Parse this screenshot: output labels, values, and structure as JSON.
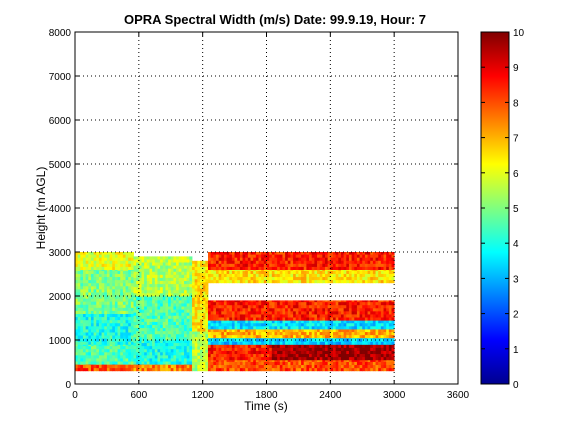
{
  "chart_data": {
    "type": "heatmap",
    "title": "OPRA Spectral Width (m/s)  Date: 99.9.19, Hour: 7",
    "xlabel": "Time (s)",
    "ylabel": "Height (m AGL)",
    "xlim": [
      0,
      3600
    ],
    "ylim": [
      0,
      8000
    ],
    "x_ticks": [
      0,
      600,
      1200,
      1800,
      2400,
      3000,
      3600
    ],
    "y_ticks": [
      0,
      1000,
      2000,
      3000,
      4000,
      5000,
      6000,
      7000,
      8000
    ],
    "grid": true,
    "grid_style": "dotted",
    "colorbar": {
      "colormap": "jet",
      "range": [
        0,
        10
      ],
      "ticks": [
        0,
        1,
        2,
        3,
        4,
        5,
        6,
        7,
        8,
        9,
        10
      ]
    },
    "data_region": {
      "time_range": [
        0,
        3000
      ],
      "height_range": [
        300,
        3000
      ]
    },
    "blocks": [
      {
        "t": [
          0,
          550
        ],
        "h": [
          300,
          450
        ],
        "value": 8.0
      },
      {
        "t": [
          0,
          550
        ],
        "h": [
          450,
          900
        ],
        "value": 4.5
      },
      {
        "t": [
          0,
          550
        ],
        "h": [
          900,
          1600
        ],
        "value": 4.0
      },
      {
        "t": [
          0,
          550
        ],
        "h": [
          1600,
          2600
        ],
        "value": 5.0
      },
      {
        "t": [
          0,
          550
        ],
        "h": [
          2600,
          3000
        ],
        "value": 6.0
      },
      {
        "t": [
          550,
          1100
        ],
        "h": [
          300,
          450
        ],
        "value": 7.5
      },
      {
        "t": [
          550,
          1100
        ],
        "h": [
          450,
          1000
        ],
        "value": 4.0
      },
      {
        "t": [
          550,
          1100
        ],
        "h": [
          1000,
          2000
        ],
        "value": 4.5
      },
      {
        "t": [
          550,
          1100
        ],
        "h": [
          2000,
          2900
        ],
        "value": 5.5
      },
      {
        "t": [
          1100,
          1250
        ],
        "h": [
          300,
          1200
        ],
        "value": 5.5
      },
      {
        "t": [
          1100,
          1250
        ],
        "h": [
          1200,
          2800
        ],
        "value": 6.5
      },
      {
        "t": [
          1250,
          3000
        ],
        "h": [
          300,
          550
        ],
        "value": 8.0
      },
      {
        "t": [
          1250,
          1850
        ],
        "h": [
          550,
          900
        ],
        "value": 8.5
      },
      {
        "t": [
          1850,
          3000
        ],
        "h": [
          550,
          900
        ],
        "value": 9.7
      },
      {
        "t": [
          1250,
          3000
        ],
        "h": [
          900,
          1050
        ],
        "value": 3.3
      },
      {
        "t": [
          1250,
          3000
        ],
        "h": [
          1050,
          1250
        ],
        "value": 7.0
      },
      {
        "t": [
          1250,
          3000
        ],
        "h": [
          1250,
          1450
        ],
        "value": 3.5
      },
      {
        "t": [
          1250,
          3000
        ],
        "h": [
          1450,
          1900
        ],
        "value": 8.5
      },
      {
        "t": [
          1250,
          3000
        ],
        "h": [
          2300,
          2600
        ],
        "value": 6.5
      },
      {
        "t": [
          1250,
          3000
        ],
        "h": [
          2600,
          3000
        ],
        "value": 8.5
      }
    ]
  }
}
